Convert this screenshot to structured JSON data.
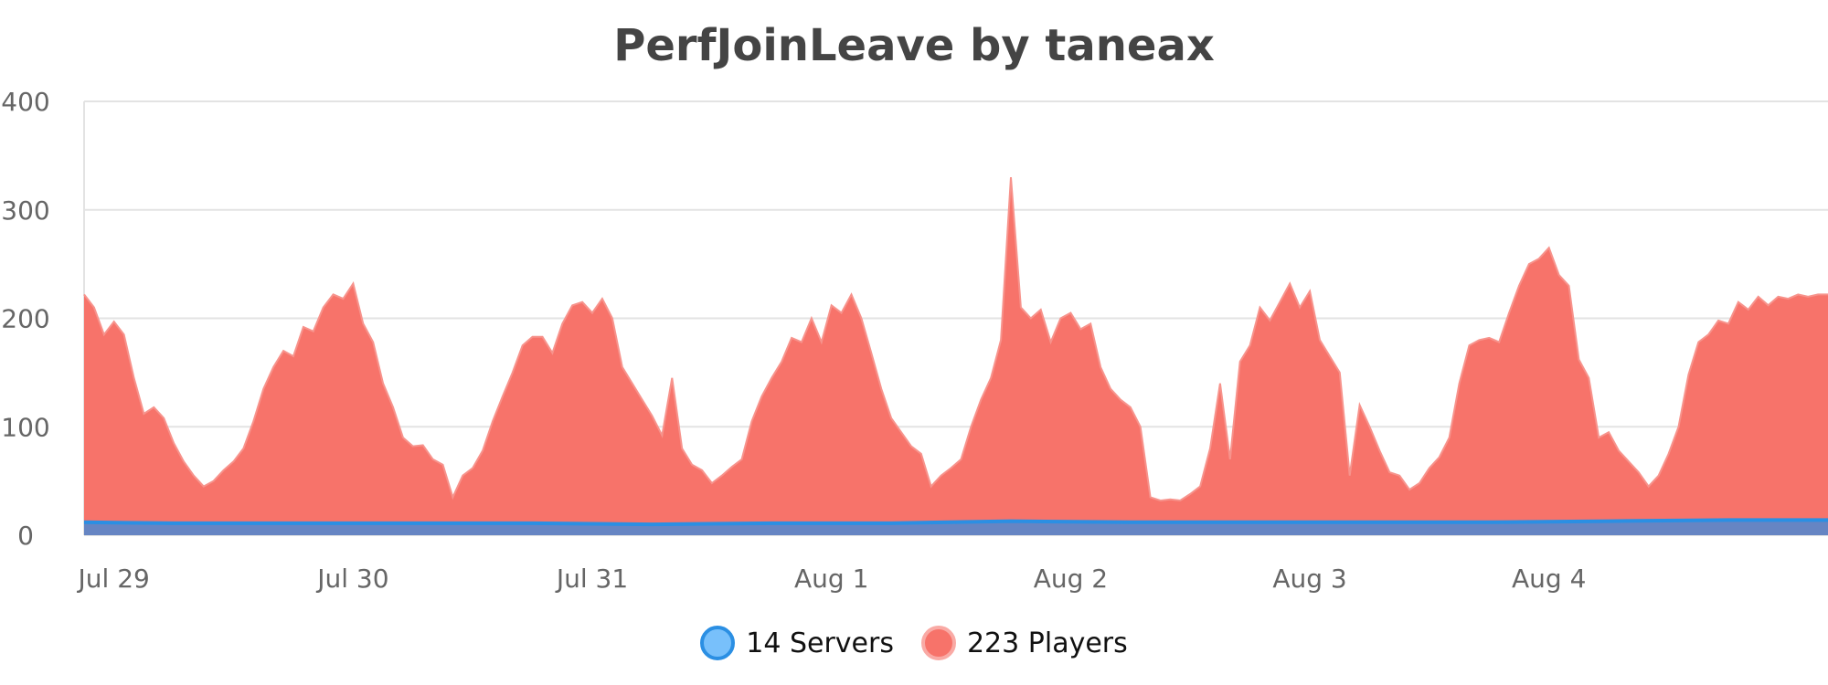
{
  "chart_data": {
    "type": "area",
    "title": "PerfJoinLeave by taneax",
    "xlabel": "",
    "ylabel": "",
    "ylim": [
      0,
      400
    ],
    "yticks": [
      0,
      100,
      200,
      300,
      400
    ],
    "x_range_days": [
      "Jul 28 21:00",
      "Aug 5 04:00"
    ],
    "xticks": [
      {
        "label": "Jul 29",
        "day": 1
      },
      {
        "label": "Jul 30",
        "day": 2
      },
      {
        "label": "Jul 31",
        "day": 3
      },
      {
        "label": "Aug 1",
        "day": 4
      },
      {
        "label": "Aug 2",
        "day": 5
      },
      {
        "label": "Aug 3",
        "day": 6
      },
      {
        "label": "Aug 4",
        "day": 7
      }
    ],
    "grid": true,
    "legend_position": "bottom",
    "series": [
      {
        "name": "Players",
        "legend_label": "223 Players",
        "color": "#f7736a",
        "points": [
          [
            "Jul 28 21:00",
            222
          ],
          [
            "Jul 28 22:00",
            210
          ],
          [
            "Jul 28 23:00",
            185
          ],
          [
            "Jul 29 00:00",
            197
          ],
          [
            "Jul 29 01:00",
            185
          ],
          [
            "Jul 29 02:00",
            145
          ],
          [
            "Jul 29 03:00",
            112
          ],
          [
            "Jul 29 04:00",
            118
          ],
          [
            "Jul 29 05:00",
            108
          ],
          [
            "Jul 29 06:00",
            85
          ],
          [
            "Jul 29 07:00",
            68
          ],
          [
            "Jul 29 08:00",
            55
          ],
          [
            "Jul 29 09:00",
            45
          ],
          [
            "Jul 29 10:00",
            50
          ],
          [
            "Jul 29 11:00",
            60
          ],
          [
            "Jul 29 12:00",
            68
          ],
          [
            "Jul 29 13:00",
            80
          ],
          [
            "Jul 29 14:00",
            105
          ],
          [
            "Jul 29 15:00",
            135
          ],
          [
            "Jul 29 16:00",
            155
          ],
          [
            "Jul 29 17:00",
            170
          ],
          [
            "Jul 29 18:00",
            165
          ],
          [
            "Jul 29 19:00",
            192
          ],
          [
            "Jul 29 20:00",
            188
          ],
          [
            "Jul 29 21:00",
            210
          ],
          [
            "Jul 29 22:00",
            222
          ],
          [
            "Jul 29 23:00",
            218
          ],
          [
            "Jul 30 00:00",
            232
          ],
          [
            "Jul 30 01:00",
            195
          ],
          [
            "Jul 30 02:00",
            178
          ],
          [
            "Jul 30 03:00",
            140
          ],
          [
            "Jul 30 04:00",
            118
          ],
          [
            "Jul 30 05:00",
            90
          ],
          [
            "Jul 30 06:00",
            82
          ],
          [
            "Jul 30 07:00",
            83
          ],
          [
            "Jul 30 08:00",
            70
          ],
          [
            "Jul 30 09:00",
            65
          ],
          [
            "Jul 30 10:00",
            35
          ],
          [
            "Jul 30 11:00",
            55
          ],
          [
            "Jul 30 12:00",
            62
          ],
          [
            "Jul 30 13:00",
            78
          ],
          [
            "Jul 30 14:00",
            105
          ],
          [
            "Jul 30 15:00",
            128
          ],
          [
            "Jul 30 16:00",
            150
          ],
          [
            "Jul 30 17:00",
            175
          ],
          [
            "Jul 30 18:00",
            183
          ],
          [
            "Jul 30 19:00",
            183
          ],
          [
            "Jul 30 20:00",
            168
          ],
          [
            "Jul 30 21:00",
            195
          ],
          [
            "Jul 30 22:00",
            212
          ],
          [
            "Jul 30 23:00",
            215
          ],
          [
            "Jul 31 00:00",
            205
          ],
          [
            "Jul 31 01:00",
            218
          ],
          [
            "Jul 31 02:00",
            200
          ],
          [
            "Jul 31 03:00",
            155
          ],
          [
            "Jul 31 04:00",
            140
          ],
          [
            "Jul 31 05:00",
            125
          ],
          [
            "Jul 31 06:00",
            110
          ],
          [
            "Jul 31 07:00",
            92
          ],
          [
            "Jul 31 08:00",
            145
          ],
          [
            "Jul 31 09:00",
            80
          ],
          [
            "Jul 31 10:00",
            65
          ],
          [
            "Jul 31 11:00",
            60
          ],
          [
            "Jul 31 12:00",
            48
          ],
          [
            "Jul 31 13:00",
            55
          ],
          [
            "Jul 31 14:00",
            63
          ],
          [
            "Jul 31 15:00",
            70
          ],
          [
            "Jul 31 16:00",
            105
          ],
          [
            "Jul 31 17:00",
            128
          ],
          [
            "Jul 31 18:00",
            145
          ],
          [
            "Jul 31 19:00",
            160
          ],
          [
            "Jul 31 20:00",
            182
          ],
          [
            "Jul 31 21:00",
            178
          ],
          [
            "Jul 31 22:00",
            200
          ],
          [
            "Jul 31 23:00",
            178
          ],
          [
            "Aug 1 00:00",
            212
          ],
          [
            "Aug 1 01:00",
            205
          ],
          [
            "Aug 1 02:00",
            222
          ],
          [
            "Aug 1 03:00",
            200
          ],
          [
            "Aug 1 04:00",
            168
          ],
          [
            "Aug 1 05:00",
            135
          ],
          [
            "Aug 1 06:00",
            108
          ],
          [
            "Aug 1 07:00",
            95
          ],
          [
            "Aug 1 08:00",
            82
          ],
          [
            "Aug 1 09:00",
            75
          ],
          [
            "Aug 1 10:00",
            45
          ],
          [
            "Aug 1 11:00",
            55
          ],
          [
            "Aug 1 12:00",
            62
          ],
          [
            "Aug 1 13:00",
            70
          ],
          [
            "Aug 1 14:00",
            100
          ],
          [
            "Aug 1 15:00",
            125
          ],
          [
            "Aug 1 16:00",
            145
          ],
          [
            "Aug 1 17:00",
            180
          ],
          [
            "Aug 1 18:00",
            330
          ],
          [
            "Aug 1 19:00",
            210
          ],
          [
            "Aug 1 20:00",
            200
          ],
          [
            "Aug 1 21:00",
            208
          ],
          [
            "Aug 1 22:00",
            178
          ],
          [
            "Aug 1 23:00",
            200
          ],
          [
            "Aug 2 00:00",
            205
          ],
          [
            "Aug 2 01:00",
            190
          ],
          [
            "Aug 2 02:00",
            195
          ],
          [
            "Aug 2 03:00",
            155
          ],
          [
            "Aug 2 04:00",
            135
          ],
          [
            "Aug 2 05:00",
            125
          ],
          [
            "Aug 2 06:00",
            118
          ],
          [
            "Aug 2 07:00",
            100
          ],
          [
            "Aug 2 08:00",
            35
          ],
          [
            "Aug 2 09:00",
            32
          ],
          [
            "Aug 2 10:00",
            33
          ],
          [
            "Aug 2 11:00",
            32
          ],
          [
            "Aug 2 12:00",
            38
          ],
          [
            "Aug 2 13:00",
            45
          ],
          [
            "Aug 2 14:00",
            80
          ],
          [
            "Aug 2 15:00",
            140
          ],
          [
            "Aug 2 16:00",
            70
          ],
          [
            "Aug 2 17:00",
            160
          ],
          [
            "Aug 2 18:00",
            175
          ],
          [
            "Aug 2 19:00",
            210
          ],
          [
            "Aug 2 20:00",
            198
          ],
          [
            "Aug 2 21:00",
            215
          ],
          [
            "Aug 2 22:00",
            232
          ],
          [
            "Aug 2 23:00",
            210
          ],
          [
            "Aug 3 00:00",
            225
          ],
          [
            "Aug 3 01:00",
            180
          ],
          [
            "Aug 3 02:00",
            165
          ],
          [
            "Aug 3 03:00",
            150
          ],
          [
            "Aug 3 04:00",
            55
          ],
          [
            "Aug 3 05:00",
            120
          ],
          [
            "Aug 3 06:00",
            100
          ],
          [
            "Aug 3 07:00",
            78
          ],
          [
            "Aug 3 08:00",
            58
          ],
          [
            "Aug 3 09:00",
            55
          ],
          [
            "Aug 3 10:00",
            42
          ],
          [
            "Aug 3 11:00",
            48
          ],
          [
            "Aug 3 12:00",
            62
          ],
          [
            "Aug 3 13:00",
            72
          ],
          [
            "Aug 3 14:00",
            90
          ],
          [
            "Aug 3 15:00",
            140
          ],
          [
            "Aug 3 16:00",
            175
          ],
          [
            "Aug 3 17:00",
            180
          ],
          [
            "Aug 3 18:00",
            182
          ],
          [
            "Aug 3 19:00",
            178
          ],
          [
            "Aug 3 20:00",
            205
          ],
          [
            "Aug 3 21:00",
            230
          ],
          [
            "Aug 3 22:00",
            250
          ],
          [
            "Aug 3 23:00",
            255
          ],
          [
            "Aug 4 00:00",
            265
          ],
          [
            "Aug 4 01:00",
            240
          ],
          [
            "Aug 4 02:00",
            230
          ],
          [
            "Aug 4 03:00",
            162
          ],
          [
            "Aug 4 04:00",
            145
          ],
          [
            "Aug 4 05:00",
            90
          ],
          [
            "Aug 4 06:00",
            95
          ],
          [
            "Aug 4 07:00",
            78
          ],
          [
            "Aug 4 08:00",
            68
          ],
          [
            "Aug 4 09:00",
            58
          ],
          [
            "Aug 4 10:00",
            45
          ],
          [
            "Aug 4 11:00",
            55
          ],
          [
            "Aug 4 12:00",
            75
          ],
          [
            "Aug 4 13:00",
            100
          ],
          [
            "Aug 4 14:00",
            148
          ],
          [
            "Aug 4 15:00",
            178
          ],
          [
            "Aug 4 16:00",
            185
          ],
          [
            "Aug 4 17:00",
            198
          ],
          [
            "Aug 4 18:00",
            195
          ],
          [
            "Aug 4 19:00",
            215
          ],
          [
            "Aug 4 20:00",
            208
          ],
          [
            "Aug 4 21:00",
            220
          ],
          [
            "Aug 4 22:00",
            212
          ],
          [
            "Aug 4 23:00",
            220
          ],
          [
            "Aug 5 00:00",
            218
          ],
          [
            "Aug 5 01:00",
            222
          ],
          [
            "Aug 5 02:00",
            220
          ],
          [
            "Aug 5 03:00",
            222
          ],
          [
            "Aug 5 04:00",
            222
          ]
        ]
      },
      {
        "name": "Servers",
        "legend_label": "14 Servers",
        "color": "#2b8fe3",
        "points": [
          [
            "Jul 28 21:00",
            12
          ],
          [
            "Jul 29 06:00",
            11
          ],
          [
            "Jul 29 18:00",
            11
          ],
          [
            "Jul 30 06:00",
            11
          ],
          [
            "Jul 30 18:00",
            11
          ],
          [
            "Jul 31 06:00",
            10
          ],
          [
            "Jul 31 18:00",
            11
          ],
          [
            "Aug 1 06:00",
            11
          ],
          [
            "Aug 1 18:00",
            13
          ],
          [
            "Aug 2 06:00",
            12
          ],
          [
            "Aug 2 18:00",
            12
          ],
          [
            "Aug 3 06:00",
            12
          ],
          [
            "Aug 3 18:00",
            12
          ],
          [
            "Aug 4 06:00",
            13
          ],
          [
            "Aug 4 18:00",
            14
          ],
          [
            "Aug 5 04:00",
            14
          ]
        ]
      }
    ]
  }
}
